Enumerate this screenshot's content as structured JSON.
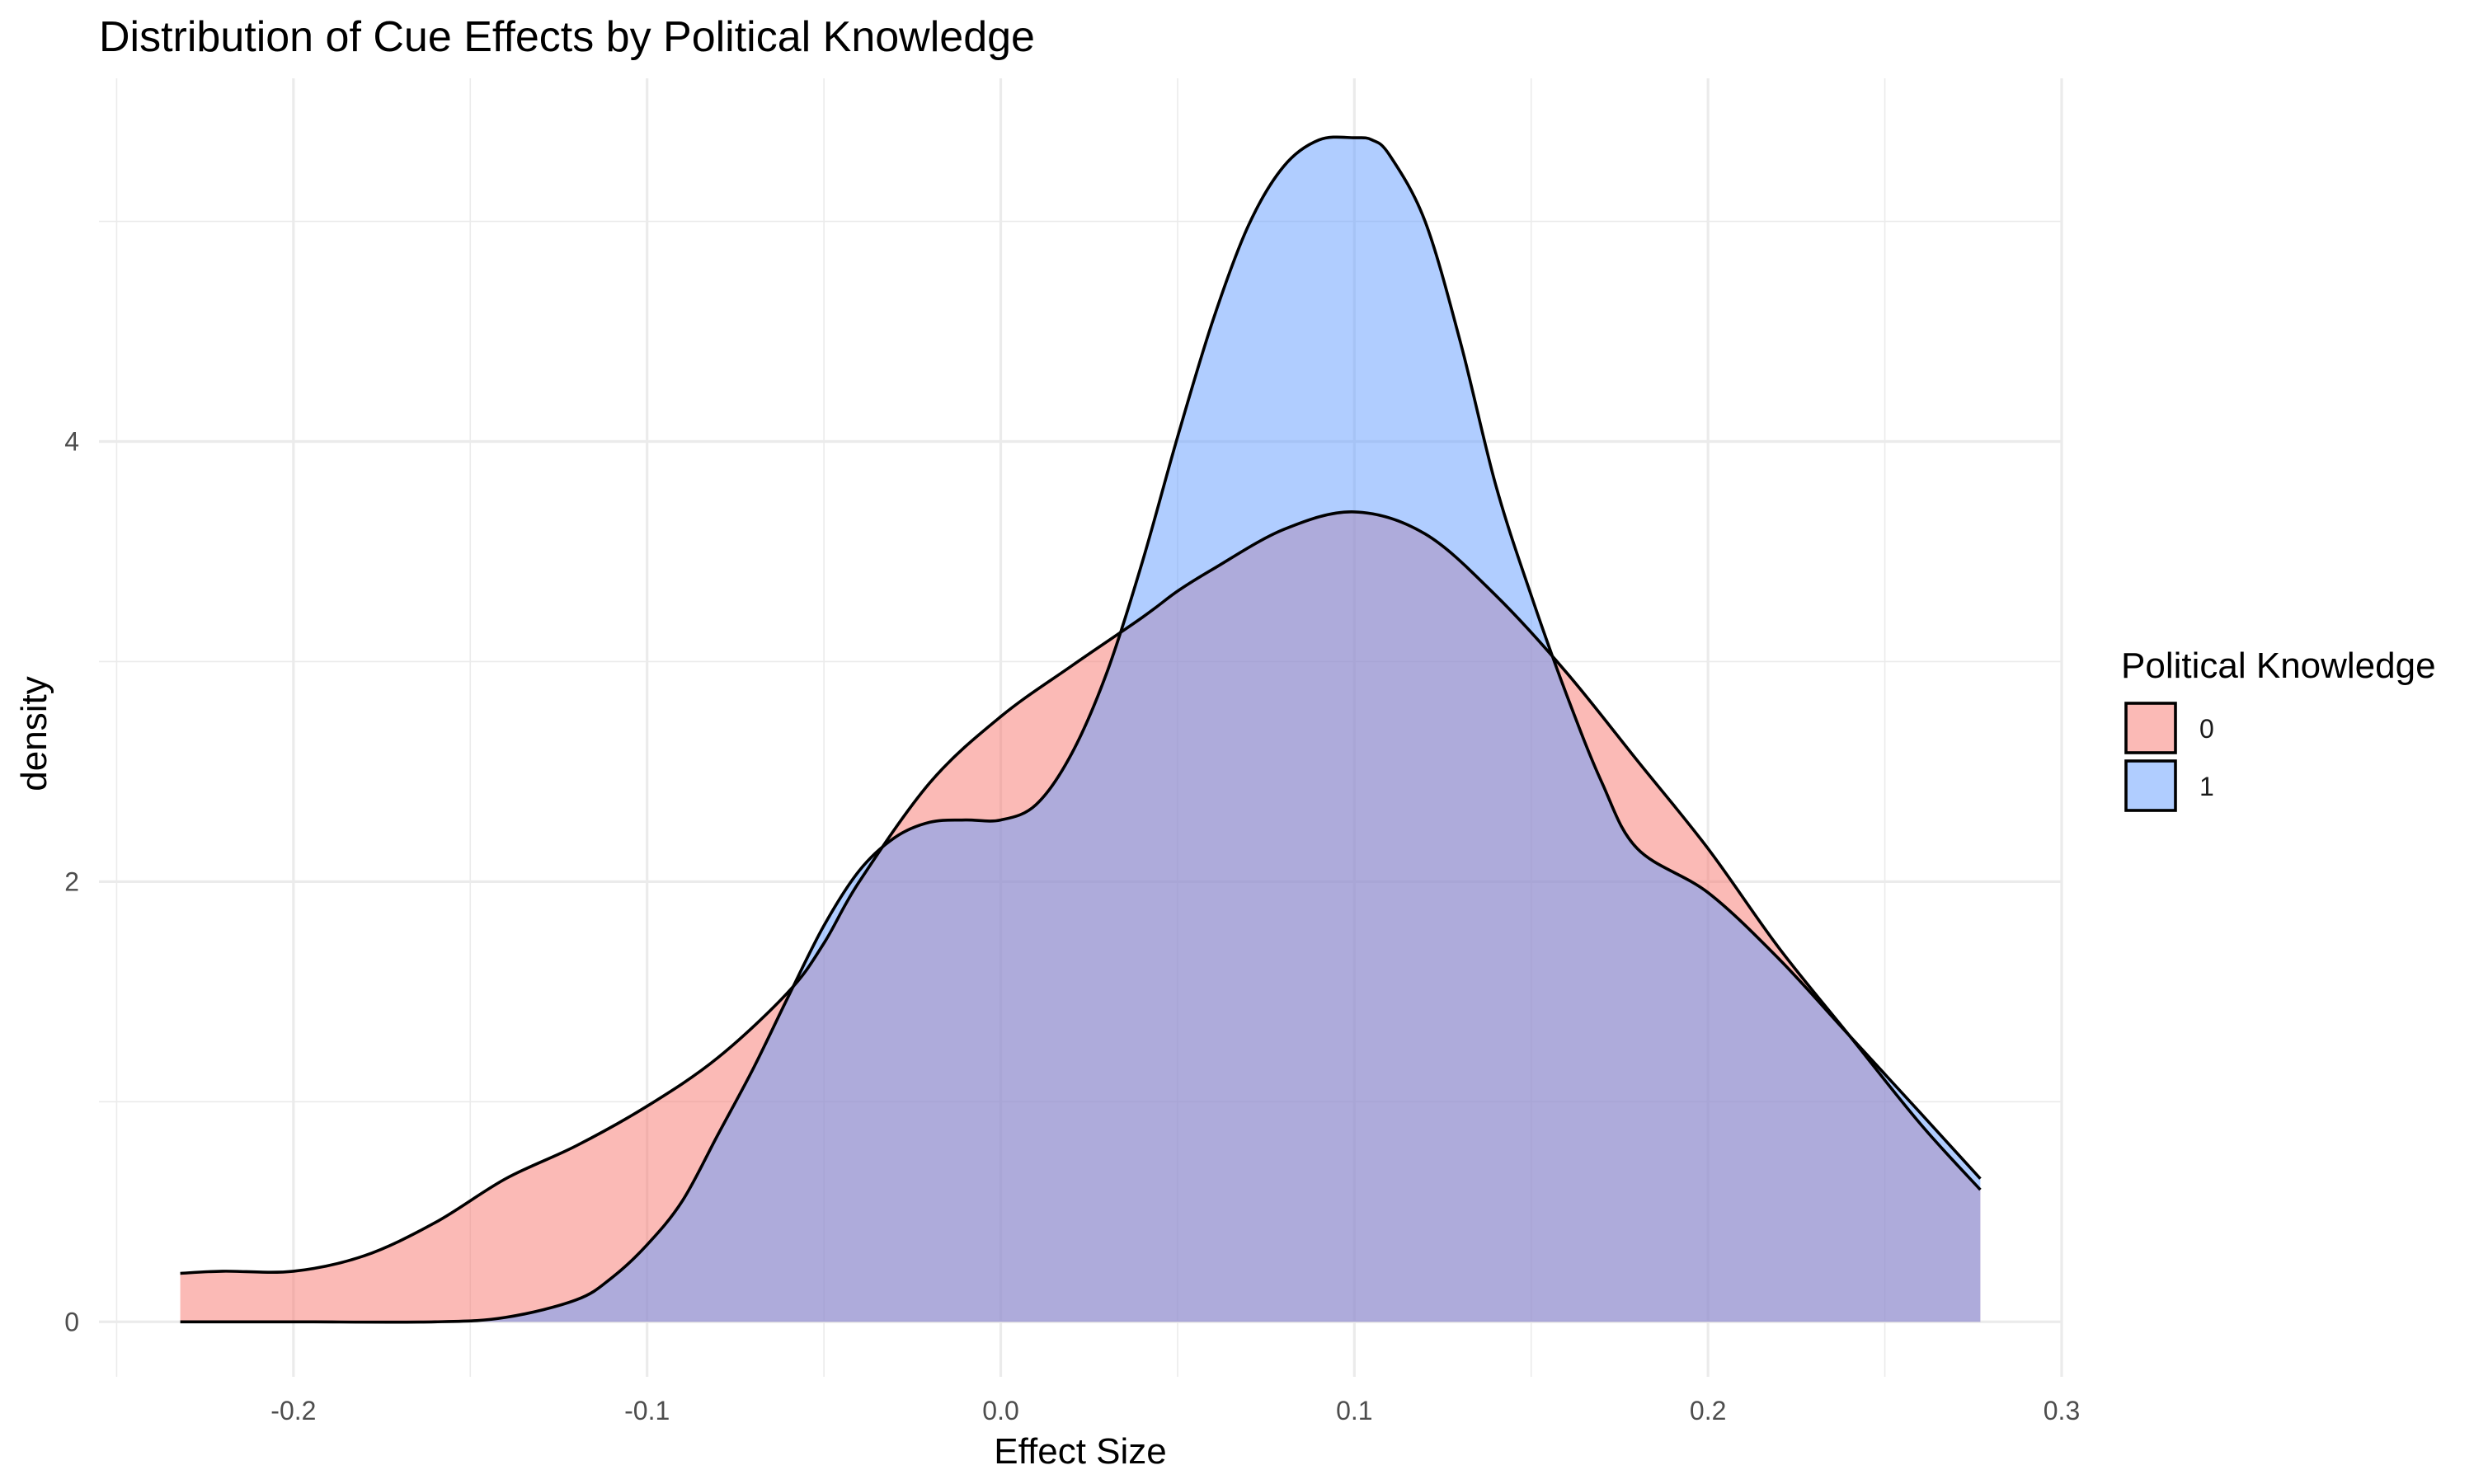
{
  "chart_data": {
    "type": "area",
    "subtype": "density",
    "title": "Distribution of Cue Effects by Political Knowledge",
    "xlabel": "Effect Size",
    "ylabel": "density",
    "xlim": [
      -0.255,
      0.3
    ],
    "ylim": [
      -0.25,
      5.65
    ],
    "x_ticks": [
      -0.2,
      -0.1,
      0.0,
      0.1,
      0.2,
      0.3
    ],
    "x_tick_labels": [
      "-0.2",
      "-0.1",
      "0.0",
      "0.1",
      "0.2",
      "0.3"
    ],
    "y_ticks": [
      0,
      2,
      4
    ],
    "y_tick_labels": [
      "0",
      "2",
      "4"
    ],
    "x_minor_ticks": [
      -0.25,
      -0.15,
      -0.05,
      0.05,
      0.15,
      0.25
    ],
    "y_minor_ticks": [
      1,
      3,
      5
    ],
    "grid": true,
    "alpha": 0.5,
    "legend": {
      "title": "Political Knowledge",
      "position": "right"
    },
    "series": [
      {
        "name": "0",
        "color": "#F8766D",
        "fill": "#FCBBB6",
        "x": [
          -0.232,
          -0.22,
          -0.2,
          -0.18,
          -0.16,
          -0.14,
          -0.12,
          -0.1,
          -0.08,
          -0.06,
          -0.05,
          -0.04,
          -0.02,
          0.0,
          0.02,
          0.04,
          0.05,
          0.06,
          0.08,
          0.1,
          0.12,
          0.14,
          0.16,
          0.18,
          0.2,
          0.22,
          0.24,
          0.26,
          0.277
        ],
        "y": [
          0.22,
          0.23,
          0.23,
          0.3,
          0.45,
          0.65,
          0.8,
          0.98,
          1.2,
          1.5,
          1.72,
          2.0,
          2.45,
          2.75,
          2.98,
          3.2,
          3.32,
          3.42,
          3.6,
          3.68,
          3.58,
          3.3,
          2.95,
          2.55,
          2.15,
          1.7,
          1.3,
          0.9,
          0.6
        ]
      },
      {
        "name": "1",
        "color": "#619CFF",
        "fill": "#B8D4EB",
        "x": [
          -0.232,
          -0.2,
          -0.16,
          -0.14,
          -0.12,
          -0.11,
          -0.1,
          -0.09,
          -0.08,
          -0.07,
          -0.06,
          -0.05,
          -0.04,
          -0.03,
          -0.02,
          -0.01,
          0.0,
          0.01,
          0.02,
          0.03,
          0.04,
          0.05,
          0.06,
          0.07,
          0.08,
          0.09,
          0.1,
          0.105,
          0.11,
          0.12,
          0.13,
          0.14,
          0.15,
          0.16,
          0.17,
          0.18,
          0.2,
          0.22,
          0.24,
          0.26,
          0.277
        ],
        "y": [
          0.0,
          0.0,
          0.0,
          0.02,
          0.1,
          0.2,
          0.35,
          0.55,
          0.85,
          1.15,
          1.48,
          1.8,
          2.05,
          2.2,
          2.27,
          2.28,
          2.28,
          2.35,
          2.58,
          2.95,
          3.45,
          4.02,
          4.55,
          4.98,
          5.25,
          5.37,
          5.38,
          5.37,
          5.3,
          5.0,
          4.45,
          3.8,
          3.3,
          2.85,
          2.45,
          2.15,
          1.95,
          1.65,
          1.3,
          0.95,
          0.65
        ]
      }
    ]
  }
}
